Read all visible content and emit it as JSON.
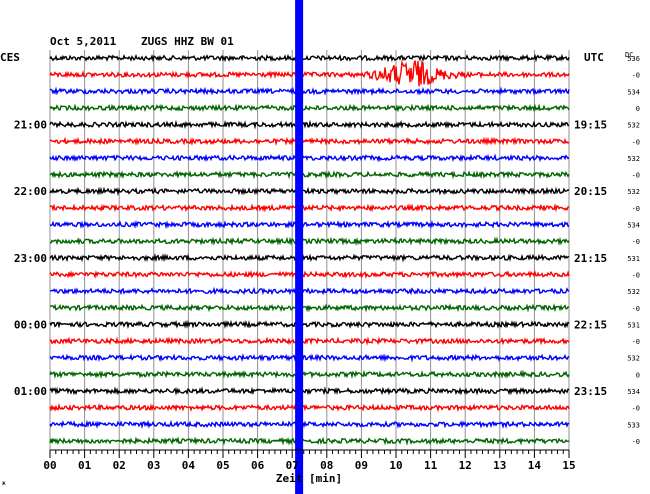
{
  "header": {
    "date": "Oct 5,2011",
    "station": "ZUGS HHZ BW 01"
  },
  "chart_data": {
    "type": "line",
    "title": "",
    "xlabel": "Zeit [min]",
    "ylabel": "",
    "xlim": [
      0,
      15
    ],
    "x_ticks": [
      "00",
      "01",
      "02",
      "03",
      "04",
      "05",
      "06",
      "07",
      "08",
      "09",
      "10",
      "11",
      "12",
      "13",
      "14",
      "15"
    ],
    "left_tz": "CES",
    "right_tz": "UTC",
    "dc_label": "DC",
    "left_time_labels": [
      {
        "trace": 4,
        "label": "21:00"
      },
      {
        "trace": 8,
        "label": "22:00"
      },
      {
        "trace": 12,
        "label": "23:00"
      },
      {
        "trace": 16,
        "label": "00:00"
      },
      {
        "trace": 20,
        "label": "01:00"
      }
    ],
    "right_time_labels": [
      {
        "trace": 4,
        "label": "19:15"
      },
      {
        "trace": 8,
        "label": "20:15"
      },
      {
        "trace": 12,
        "label": "21:15"
      },
      {
        "trace": 16,
        "label": "22:15"
      },
      {
        "trace": 20,
        "label": "23:15"
      }
    ],
    "dc_values": [
      "536",
      "-0",
      "534",
      "0",
      "532",
      "-0",
      "532",
      "-0",
      "532",
      "-0",
      "534",
      "-0",
      "531",
      "-0",
      "532",
      "-0",
      "531",
      "-0",
      "532",
      "0",
      "534",
      "-0",
      "533",
      "-0"
    ],
    "trace_colors": [
      "#000000",
      "#ff0000",
      "#0000ff",
      "#006400"
    ],
    "trace_count": 24,
    "events": [
      {
        "trace": 1,
        "start_min": 9.0,
        "peak_min": 10.6,
        "end_min": 12.0,
        "amplitude": "large"
      }
    ],
    "vertical_marker": {
      "at_min": 7.2,
      "color": "#0000ff"
    },
    "grid": true
  }
}
